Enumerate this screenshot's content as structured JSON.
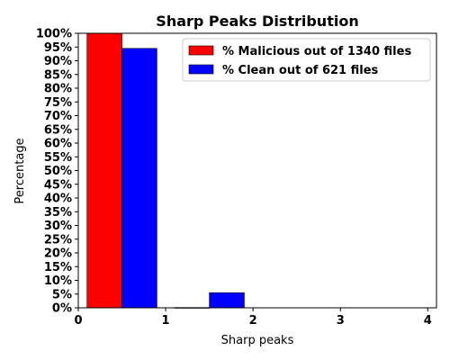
{
  "chart_data": {
    "type": "bar",
    "title": "Sharp Peaks Distribution",
    "xlabel": "Sharp peaks",
    "ylabel": "Percentage",
    "xlim": [
      0,
      4.1
    ],
    "ylim": [
      0,
      100
    ],
    "x_ticks": [
      0,
      1,
      2,
      3,
      4
    ],
    "x_tick_labels": [
      "0",
      "1",
      "2",
      "3",
      "4"
    ],
    "y_ticks": [
      0,
      5,
      10,
      15,
      20,
      25,
      30,
      35,
      40,
      45,
      50,
      55,
      60,
      65,
      70,
      75,
      80,
      85,
      90,
      95,
      100
    ],
    "y_tick_labels": [
      "0%",
      "5%",
      "10%",
      "15%",
      "20%",
      "25%",
      "30%",
      "35%",
      "40%",
      "45%",
      "50%",
      "55%",
      "60%",
      "65%",
      "70%",
      "75%",
      "80%",
      "85%",
      "90%",
      "95%",
      "100%"
    ],
    "bar_width": 0.4,
    "legend_position": "top-right",
    "series": [
      {
        "name": "% Malicious out of 1340 files",
        "color": "#ff0000",
        "x_left": [
          0.1,
          1.1
        ],
        "values": [
          100.0,
          0.1
        ]
      },
      {
        "name": "% Clean out of 621 files",
        "color": "#0000ff",
        "x_left": [
          0.5,
          1.5
        ],
        "values": [
          94.5,
          5.5
        ]
      }
    ]
  }
}
